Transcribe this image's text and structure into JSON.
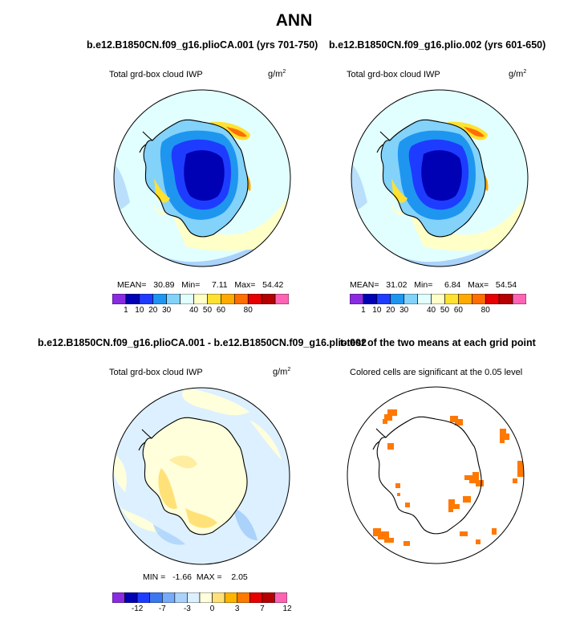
{
  "main_title": "ANN",
  "panels": {
    "p1": {
      "title": "b.e12.B1850CN.f09_g16.plioCA.001 (yrs 701-750)",
      "variable": "Total grd-box cloud IWP",
      "units_base": "g/m",
      "units_exp": "2",
      "stats": {
        "mean_label": "MEAN=",
        "mean": "30.89",
        "min_label": "Min=",
        "min": "7.11",
        "max_label": "Max=",
        "max": "54.42"
      }
    },
    "p2": {
      "title": "b.e12.B1850CN.f09_g16.plio.002 (yrs 601-650)",
      "variable": "Total grd-box cloud IWP",
      "units_base": "g/m",
      "units_exp": "2",
      "stats": {
        "mean_label": "MEAN=",
        "mean": "31.02",
        "min_label": "Min=",
        "min": "6.84",
        "max_label": "Max=",
        "max": "54.54"
      }
    },
    "p3": {
      "title": "b.e12.B1850CN.f09_g16.plioCA.001 - b.e12.B1850CN.f09_g16.plio.002",
      "variable": "Total grd-box cloud IWP",
      "units_base": "g/m",
      "units_exp": "2",
      "stats": {
        "min_label": "MIN =",
        "min": "-1.66",
        "max_label": "MAX =",
        "max": "2.05"
      }
    },
    "p4": {
      "title": "t-test of the two means at each grid point",
      "subtitle": "Colored cells are significant at the 0.05 level"
    }
  },
  "chart_data": [
    {
      "type": "heatmap",
      "title": "b.e12.B1850CN.f09_g16.plioCA.001 (yrs 701-750)",
      "variable": "Total grd-box cloud IWP",
      "projection": "south polar stereographic",
      "colorbar_labels": [
        "1",
        "10",
        "20",
        "30",
        "40",
        "50",
        "60",
        "80"
      ],
      "colorbar_colors": [
        "#8A2BE2",
        "#0000B4",
        "#1E3CFF",
        "#1E96F0",
        "#82D2FA",
        "#E1FFFF",
        "#FFFFC8",
        "#FFE132",
        "#FFAA00",
        "#FF6E00",
        "#E60000",
        "#B40000",
        "#FF64B4"
      ],
      "mean": 30.89,
      "min": 7.11,
      "max": 54.42
    },
    {
      "type": "heatmap",
      "title": "b.e12.B1850CN.f09_g16.plio.002 (yrs 601-650)",
      "variable": "Total grd-box cloud IWP",
      "projection": "south polar stereographic",
      "colorbar_labels": [
        "1",
        "10",
        "20",
        "30",
        "40",
        "50",
        "60",
        "80"
      ],
      "colorbar_colors": [
        "#8A2BE2",
        "#0000B4",
        "#1E3CFF",
        "#1E96F0",
        "#82D2FA",
        "#E1FFFF",
        "#FFFFC8",
        "#FFE132",
        "#FFAA00",
        "#FF6E00",
        "#E60000",
        "#B40000",
        "#FF64B4"
      ],
      "mean": 31.02,
      "min": 6.84,
      "max": 54.54
    },
    {
      "type": "heatmap",
      "title": "b.e12.B1850CN.f09_g16.plioCA.001 - b.e12.B1850CN.f09_g16.plio.002",
      "variable": "Total grd-box cloud IWP",
      "projection": "south polar stereographic",
      "colorbar_labels": [
        "-12",
        "-7",
        "-3",
        "0",
        "3",
        "7",
        "12"
      ],
      "colorbar_colors": [
        "#8A2BE2",
        "#0000B4",
        "#1E3CFF",
        "#3C78F0",
        "#78AAFA",
        "#AAD2FA",
        "#DCF0FF",
        "#FFFFDC",
        "#FFE178",
        "#FFB400",
        "#FF7800",
        "#E60000",
        "#B40000",
        "#FF64B4"
      ],
      "min": -1.66,
      "max": 2.05
    },
    {
      "type": "heatmap",
      "title": "t-test of the two means at each grid point",
      "subtitle": "Colored cells are significant at the 0.05 level",
      "projection": "south polar stereographic",
      "significant_color": "#FF7800"
    }
  ]
}
